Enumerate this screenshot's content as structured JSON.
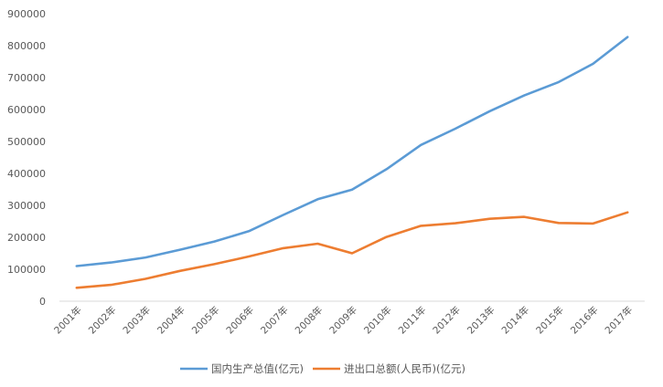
{
  "chart_data": {
    "type": "line",
    "title": "",
    "xlabel": "",
    "ylabel": "",
    "categories": [
      "2001年",
      "2002年",
      "2003年",
      "2004年",
      "2005年",
      "2006年",
      "2007年",
      "2008年",
      "2009年",
      "2010年",
      "2011年",
      "2012年",
      "2013年",
      "2014年",
      "2015年",
      "2016年",
      "2017年"
    ],
    "ylim": [
      0,
      900000
    ],
    "yticks": [
      "0",
      "100000",
      "200000",
      "300000",
      "400000",
      "500000",
      "600000",
      "700000",
      "800000",
      "900000"
    ],
    "grid": false,
    "legend_position": "bottom",
    "series": [
      {
        "name": "国内生产总值(亿元)",
        "color": "#5b9bd5",
        "values": [
          110000,
          121000,
          137000,
          161000,
          187000,
          219000,
          270000,
          319000,
          349000,
          413000,
          489000,
          540000,
          595000,
          644000,
          686000,
          743000,
          827000
        ]
      },
      {
        "name": "进出口总额(人民币)(亿元)",
        "color": "#ed7d31",
        "values": [
          42000,
          51000,
          70000,
          95000,
          116000,
          140000,
          166000,
          180000,
          150000,
          201000,
          236000,
          244000,
          258000,
          264000,
          245000,
          243000,
          278000
        ]
      }
    ]
  }
}
